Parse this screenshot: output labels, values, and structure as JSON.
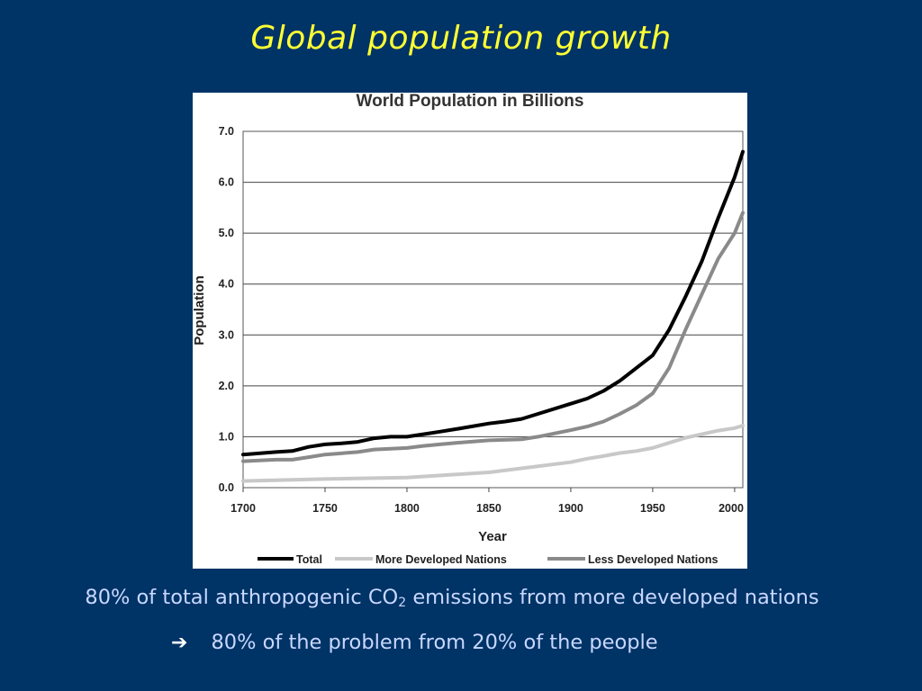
{
  "slide": {
    "title": "Global population growth",
    "caption_pre": "80% of total anthropogenic CO",
    "caption_sub": "2",
    "caption_post": " emissions from more developed nations",
    "caption2": "80% of the problem from 20% of the people",
    "arrow_icon": "right-arrow-icon",
    "colors": {
      "background": "#003366",
      "title": "#ffff33",
      "caption": "#c8d8ff"
    }
  },
  "chart_data": {
    "type": "line",
    "title": "World Population in Billions",
    "xlabel": "Year",
    "ylabel": "Population",
    "xlim": [
      1700,
      2005
    ],
    "ylim": [
      0,
      7
    ],
    "x_ticks": [
      1700,
      1750,
      1800,
      1850,
      1900,
      1950,
      2000
    ],
    "y_ticks": [
      "0.0",
      "1.0",
      "2.0",
      "3.0",
      "4.0",
      "5.0",
      "6.0",
      "7.0"
    ],
    "grid": "horizontal",
    "legend_position": "bottom",
    "series": [
      {
        "name": "Total",
        "color": "#000000",
        "x": [
          1700,
          1720,
          1730,
          1740,
          1750,
          1760,
          1770,
          1780,
          1790,
          1800,
          1810,
          1820,
          1830,
          1850,
          1860,
          1870,
          1880,
          1900,
          1910,
          1920,
          1930,
          1940,
          1950,
          1960,
          1970,
          1980,
          1990,
          2000,
          2005
        ],
        "y": [
          0.65,
          0.7,
          0.72,
          0.8,
          0.85,
          0.87,
          0.9,
          0.97,
          1.0,
          1.0,
          1.05,
          1.1,
          1.15,
          1.26,
          1.3,
          1.35,
          1.45,
          1.65,
          1.75,
          1.9,
          2.1,
          2.35,
          2.6,
          3.1,
          3.75,
          4.45,
          5.3,
          6.1,
          6.6
        ]
      },
      {
        "name": "More Developed Nations",
        "color": "#c8c8c8",
        "x": [
          1700,
          1750,
          1800,
          1850,
          1900,
          1910,
          1920,
          1930,
          1940,
          1950,
          1960,
          1970,
          1980,
          1990,
          2000,
          2005
        ],
        "y": [
          0.13,
          0.17,
          0.2,
          0.3,
          0.5,
          0.57,
          0.62,
          0.68,
          0.72,
          0.78,
          0.88,
          0.98,
          1.05,
          1.12,
          1.17,
          1.22
        ]
      },
      {
        "name": "Less Developed Nations",
        "color": "#8a8a8a",
        "x": [
          1700,
          1720,
          1730,
          1740,
          1750,
          1770,
          1780,
          1800,
          1810,
          1820,
          1830,
          1850,
          1870,
          1880,
          1900,
          1910,
          1920,
          1930,
          1940,
          1950,
          1960,
          1970,
          1980,
          1990,
          2000,
          2005
        ],
        "y": [
          0.52,
          0.55,
          0.55,
          0.6,
          0.65,
          0.7,
          0.75,
          0.78,
          0.82,
          0.85,
          0.88,
          0.93,
          0.95,
          1.0,
          1.13,
          1.2,
          1.3,
          1.45,
          1.62,
          1.85,
          2.35,
          3.1,
          3.8,
          4.5,
          5.0,
          5.4
        ]
      }
    ]
  }
}
